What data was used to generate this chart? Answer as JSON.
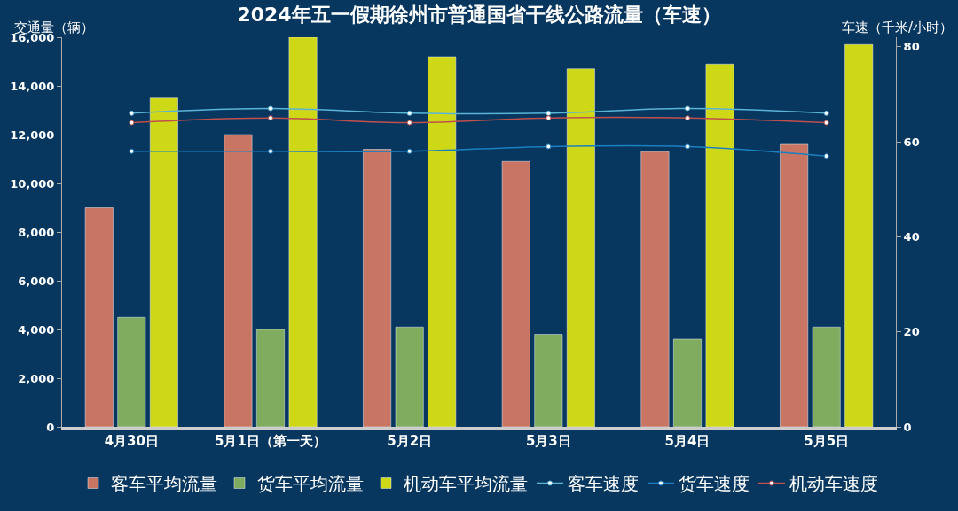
{
  "chart_data": {
    "type": "bar",
    "title": "2024年五一假期徐州市普通国省干线公路流量（车速）",
    "ylabel": "交通量（辆）",
    "y2label": "车速（千米/小时）",
    "categories": [
      "4月30日",
      "5月1日（第一天）",
      "5月2日",
      "5月3日",
      "5月4日",
      "5月5日"
    ],
    "series": [
      {
        "name": "客车平均流量",
        "color": "#c97563",
        "values": [
          9000,
          12000,
          11400,
          10900,
          11300,
          11600
        ]
      },
      {
        "name": "货车平均流量",
        "color": "#7fac5f",
        "values": [
          4500,
          4000,
          4100,
          3800,
          3600,
          4100
        ]
      },
      {
        "name": "机动车平均流量",
        "color": "#cfd816",
        "values": [
          13500,
          16000,
          15200,
          14700,
          14900,
          15700
        ]
      },
      {
        "name": "客车速度",
        "type": "line",
        "axis": "y2",
        "color": "#5ab4d6",
        "marker": "circle",
        "values": [
          66,
          67,
          66,
          66,
          67,
          66
        ]
      },
      {
        "name": "货车速度",
        "type": "line",
        "axis": "y2",
        "color": "#1a80c0",
        "marker": "circle",
        "values": [
          58,
          58,
          58,
          59,
          59,
          57
        ]
      },
      {
        "name": "机动车速度",
        "type": "line",
        "axis": "y2",
        "color": "#c0504d",
        "marker": "circle",
        "values": [
          64,
          65,
          64,
          65,
          65,
          64
        ]
      }
    ],
    "ylim": [
      0,
      16000
    ],
    "yticks": [
      0,
      {
        "value": 2000,
        "label": "2,000"
      },
      {
        "value": 4000,
        "label": "4,000"
      },
      {
        "value": 6000,
        "label": "6,000"
      },
      {
        "value": 8000,
        "label": "8,000"
      },
      {
        "value": 10000,
        "label": "10,000"
      },
      {
        "value": 12000,
        "label": "12,000"
      },
      {
        "value": 14000,
        "label": "14,000"
      },
      {
        "value": 16000,
        "label": "16,000"
      }
    ],
    "y2lim": [
      0,
      82
    ],
    "y2ticks": [
      0,
      20,
      40,
      60,
      80
    ],
    "grid": false,
    "legend": "bottom"
  }
}
